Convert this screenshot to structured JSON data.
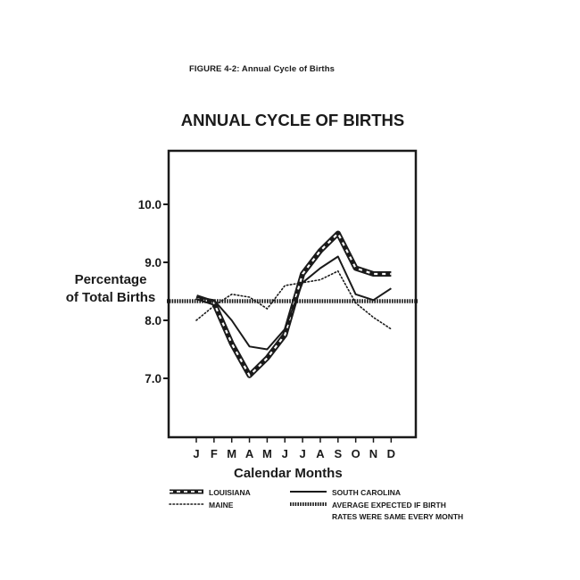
{
  "figure_caption": "FIGURE 4-2: Annual Cycle of Births",
  "chart_data": {
    "type": "line",
    "title": "ANNUAL CYCLE OF BIRTHS",
    "xlabel": "Calendar Months",
    "ylabel": "Percentage of Total Births",
    "ylabel_lines": [
      "Percentage",
      "of Total Births"
    ],
    "categories": [
      "J",
      "F",
      "M",
      "A",
      "M",
      "J",
      "J",
      "A",
      "S",
      "O",
      "N",
      "D"
    ],
    "yticks": [
      "10.0",
      "9.0",
      "8.0",
      "7.0"
    ],
    "ytick_values": [
      10.0,
      9.0,
      8.0,
      7.0
    ],
    "ylim": [
      6.0,
      10.9
    ],
    "grid": false,
    "legend_position": "bottom",
    "series": [
      {
        "name": "LOUISIANA",
        "style": "heavy-dashed",
        "values": [
          8.4,
          8.3,
          7.6,
          7.05,
          7.35,
          7.75,
          8.8,
          9.2,
          9.5,
          8.9,
          8.8,
          8.8
        ]
      },
      {
        "name": "MAINE",
        "style": "dotted",
        "values": [
          8.0,
          8.25,
          8.45,
          8.4,
          8.2,
          8.6,
          8.65,
          8.7,
          8.85,
          8.3,
          8.05,
          7.85
        ]
      },
      {
        "name": "SOUTH CAROLINA",
        "style": "solid",
        "values": [
          8.4,
          8.35,
          8.0,
          7.55,
          7.5,
          7.85,
          8.65,
          8.9,
          9.1,
          8.45,
          8.35,
          8.55
        ]
      },
      {
        "name": "AVERAGE EXPECTED IF BIRTH RATES WERE SAME EVERY MONTH",
        "style": "heavy-dotted",
        "values": [
          8.33,
          8.33,
          8.33,
          8.33,
          8.33,
          8.33,
          8.33,
          8.33,
          8.33,
          8.33,
          8.33,
          8.33
        ]
      }
    ],
    "legend": {
      "louisiana": "LOUISIANA",
      "maine": "MAINE",
      "south_carolina": "SOUTH CAROLINA",
      "average_line1": "AVERAGE EXPECTED IF BIRTH",
      "average_line2": "RATES WERE SAME EVERY MONTH"
    }
  }
}
